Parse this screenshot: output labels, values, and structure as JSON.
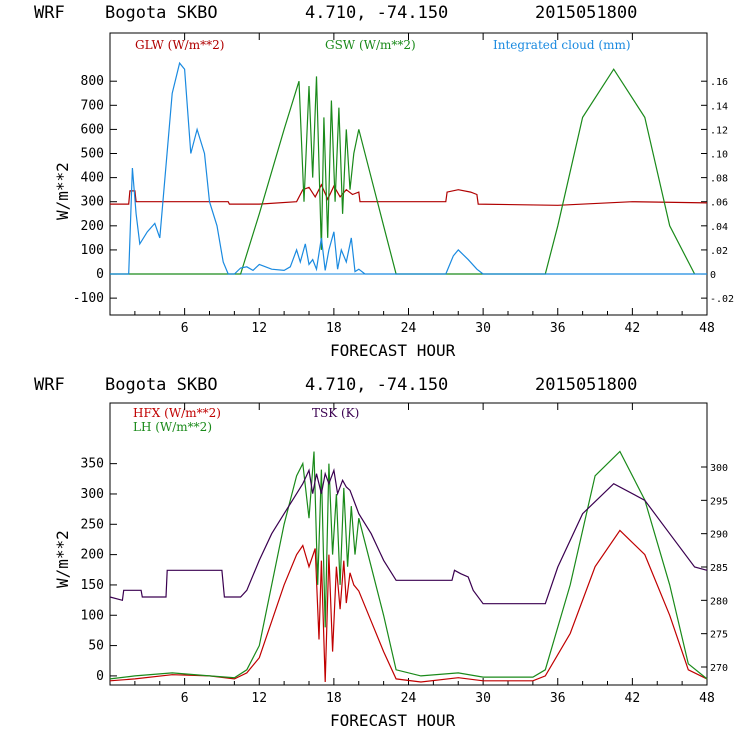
{
  "colors": {
    "glw": "#b00000",
    "gsw": "#1a8a1a",
    "cloud": "#1a8ae0",
    "hfx": "#c00000",
    "lh": "#1a8a1a",
    "tsk": "#3a0050"
  },
  "chart_data": [
    {
      "type": "line",
      "header": {
        "model": "WRF",
        "site": "Bogota SKBO",
        "coords": "4.710, -74.150",
        "run": "2015051800"
      },
      "xlabel": "FORECAST HOUR",
      "ylabel": "W/m**2",
      "xlim": [
        0,
        48
      ],
      "ylim": [
        -170,
        1000
      ],
      "y2lim": [
        -0.034,
        0.2
      ],
      "xticks": [
        "6",
        "12",
        "18",
        "24",
        "30",
        "36",
        "42",
        "48"
      ],
      "yticks": [
        "800",
        "700",
        "600",
        "500",
        "400",
        "300",
        "200",
        "100",
        "0",
        "-100"
      ],
      "y2ticks": [
        ".16",
        ".14",
        ".12",
        ".10",
        ".08",
        ".06",
        ".04",
        ".02",
        "0",
        "-.02"
      ],
      "series": [
        {
          "name": "GLW (W/m**2)",
          "axis": "left",
          "color": "glw",
          "x": [
            0,
            1.5,
            1.6,
            2,
            2.1,
            9.5,
            9.6,
            12,
            15,
            15.5,
            16,
            16.5,
            17,
            17.5,
            18,
            18.5,
            19,
            19.5,
            20,
            20.1,
            27,
            27.1,
            28,
            29,
            29.5,
            29.6,
            36,
            42,
            48
          ],
          "y": [
            290,
            290,
            345,
            345,
            300,
            300,
            290,
            290,
            300,
            350,
            360,
            320,
            370,
            310,
            365,
            320,
            350,
            330,
            340,
            300,
            300,
            340,
            350,
            340,
            330,
            290,
            285,
            300,
            295
          ]
        },
        {
          "name": "GSW (W/m**2)",
          "axis": "left",
          "color": "gsw",
          "x": [
            0,
            10.5,
            12,
            14,
            15.2,
            15.6,
            16,
            16.3,
            16.6,
            17,
            17.2,
            17.5,
            17.8,
            18.1,
            18.4,
            18.7,
            19,
            19.3,
            19.6,
            20,
            21,
            22,
            23,
            35,
            36,
            38,
            40.5,
            43,
            45,
            47
          ],
          "y": [
            0,
            0,
            250,
            600,
            800,
            300,
            780,
            400,
            820,
            100,
            650,
            150,
            720,
            300,
            690,
            250,
            600,
            350,
            500,
            600,
            400,
            200,
            0,
            0,
            200,
            650,
            850,
            650,
            200,
            0
          ]
        },
        {
          "name": "Integrated cloud (mm)",
          "axis": "right",
          "color": "cloud",
          "x": [
            0,
            1.5,
            1.8,
            2.1,
            2.4,
            3,
            3.6,
            4,
            5,
            5.6,
            6,
            6.5,
            7,
            7.6,
            8,
            8.6,
            9.1,
            9.5,
            10,
            10.5,
            11,
            11.5,
            12,
            13,
            14,
            14.5,
            15,
            15.3,
            15.7,
            16,
            16.3,
            16.6,
            17,
            17.3,
            17.6,
            18,
            18.3,
            18.6,
            19,
            19.4,
            19.7,
            20,
            20.5,
            27,
            27.6,
            28,
            28.8,
            29.5,
            30,
            48
          ],
          "y": [
            0,
            0,
            0.088,
            0.05,
            0.025,
            0.035,
            0.042,
            0.03,
            0.15,
            0.175,
            0.17,
            0.1,
            0.12,
            0.1,
            0.06,
            0.04,
            0.01,
            0,
            0,
            0.005,
            0.006,
            0.003,
            0.008,
            0.004,
            0.003,
            0.006,
            0.02,
            0.01,
            0.025,
            0.008,
            0.012,
            0.004,
            0.03,
            0.003,
            0.02,
            0.035,
            0.004,
            0.02,
            0.01,
            0.03,
            0.002,
            0.004,
            0,
            0,
            0.015,
            0.02,
            0.012,
            0.004,
            0,
            0
          ]
        }
      ]
    },
    {
      "type": "line",
      "header": {
        "model": "WRF",
        "site": "Bogota SKBO",
        "coords": "4.710, -74.150",
        "run": "2015051800"
      },
      "xlabel": "FORECAST HOUR",
      "ylabel": "W/m**2",
      "xlim": [
        0,
        48
      ],
      "ylim": [
        -15,
        450
      ],
      "y2lim": [
        267.3,
        309.6
      ],
      "xticks": [
        "6",
        "12",
        "18",
        "24",
        "30",
        "36",
        "42",
        "48"
      ],
      "yticks": [
        "350",
        "300",
        "250",
        "200",
        "150",
        "100",
        "50",
        "0"
      ],
      "y2ticks": [
        "300",
        "295",
        "290",
        "285",
        "280",
        "275",
        "270"
      ],
      "series": [
        {
          "name": "HFX (W/m**2)",
          "axis": "left",
          "color": "hfx",
          "x": [
            0,
            2,
            5,
            8,
            10,
            11,
            12,
            13,
            14,
            15,
            15.5,
            16,
            16.5,
            16.8,
            17,
            17.3,
            17.6,
            17.9,
            18.2,
            18.5,
            18.8,
            19,
            19.3,
            19.6,
            20,
            21,
            22,
            23,
            25,
            28,
            30,
            34,
            35,
            37,
            39,
            41,
            43,
            45,
            46.5,
            48
          ],
          "y": [
            -8,
            -5,
            2,
            0,
            -5,
            5,
            30,
            90,
            150,
            200,
            215,
            180,
            210,
            60,
            190,
            -10,
            200,
            40,
            180,
            110,
            190,
            120,
            170,
            150,
            140,
            90,
            40,
            -5,
            -10,
            -3,
            -8,
            -8,
            0,
            70,
            180,
            240,
            200,
            100,
            10,
            -5
          ]
        },
        {
          "name": "LH (W/m**2)",
          "axis": "left",
          "color": "lh",
          "x": [
            0,
            2,
            5,
            8,
            10,
            11,
            12,
            13,
            14,
            15,
            15.5,
            16,
            16.4,
            16.7,
            17,
            17.3,
            17.6,
            17.9,
            18.2,
            18.5,
            18.8,
            19.1,
            19.4,
            19.7,
            20,
            21,
            22,
            23,
            25,
            28,
            30,
            34,
            35,
            37,
            39,
            41,
            43,
            45,
            46.5,
            48
          ],
          "y": [
            -5,
            0,
            5,
            0,
            -3,
            10,
            50,
            150,
            250,
            330,
            350,
            260,
            370,
            150,
            340,
            80,
            350,
            200,
            300,
            150,
            310,
            180,
            280,
            200,
            260,
            180,
            100,
            10,
            0,
            5,
            -2,
            -2,
            10,
            150,
            330,
            370,
            290,
            150,
            20,
            -5
          ]
        },
        {
          "name": "TSK (K)",
          "axis": "right",
          "color": "tsk",
          "x": [
            0,
            1,
            1.1,
            2.5,
            2.6,
            4.5,
            4.6,
            9,
            9.2,
            10.5,
            11,
            12,
            13,
            14,
            15,
            15.5,
            16,
            16.3,
            16.6,
            17,
            17.3,
            17.6,
            18,
            18.3,
            18.7,
            19,
            19.3,
            19.8,
            20,
            21,
            22,
            23,
            27.5,
            27.7,
            28.2,
            28.8,
            29.2,
            30,
            35,
            36,
            38,
            40.5,
            43,
            45,
            47,
            48
          ],
          "y": [
            280.5,
            280,
            281.5,
            281.5,
            280.5,
            280.5,
            284.5,
            284.5,
            280.5,
            280.5,
            281.5,
            286,
            290,
            293,
            296,
            297.5,
            299.5,
            296,
            299,
            296,
            299,
            297.5,
            299.5,
            296,
            298,
            297,
            296.5,
            294,
            293,
            290,
            286,
            283,
            283,
            284.5,
            284,
            283.5,
            281.5,
            279.5,
            279.5,
            285,
            293,
            297.5,
            295,
            290,
            285,
            284.5
          ]
        }
      ]
    }
  ]
}
